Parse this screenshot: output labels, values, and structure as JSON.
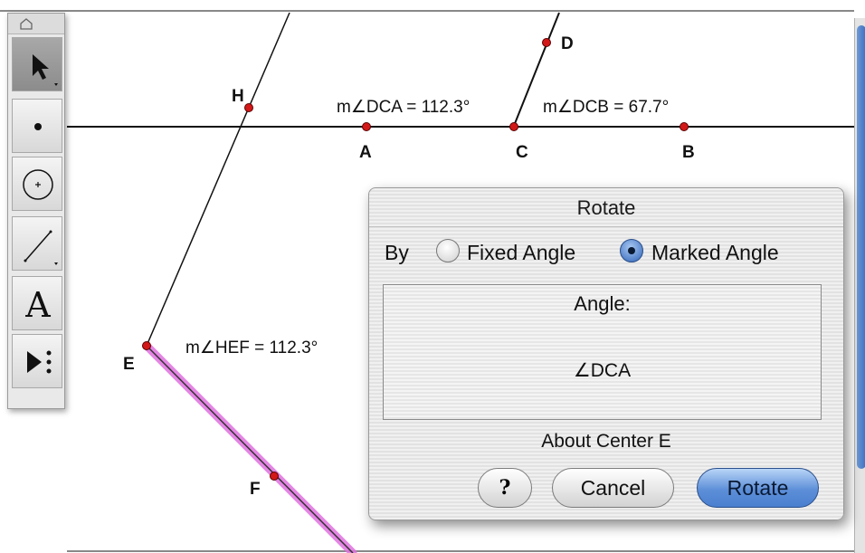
{
  "canvas": {
    "points": [
      {
        "name": "H",
        "label": "H"
      },
      {
        "name": "D",
        "label": "D"
      },
      {
        "name": "A",
        "label": "A"
      },
      {
        "name": "C",
        "label": "C"
      },
      {
        "name": "B",
        "label": "B"
      },
      {
        "name": "E",
        "label": "E"
      },
      {
        "name": "F",
        "label": "F"
      }
    ],
    "measurements": {
      "dca": "m∠DCA = 112.3°",
      "dcb": "m∠DCB = 67.7°",
      "hef": "m∠HEF = 112.3°"
    },
    "colors": {
      "point": "#d21818",
      "highlight": "#e070e0",
      "line": "#111111"
    }
  },
  "toolbox": {
    "tools": [
      {
        "name": "arrow-tool",
        "icon": "arrow-icon",
        "active": true
      },
      {
        "name": "point-tool",
        "icon": "point-icon",
        "active": false
      },
      {
        "name": "compass-tool",
        "icon": "compass-icon",
        "active": false
      },
      {
        "name": "straightedge-tool",
        "icon": "straightedge-icon",
        "active": false
      },
      {
        "name": "text-tool",
        "icon": "text-icon",
        "label": "A",
        "active": false
      },
      {
        "name": "custom-tool",
        "icon": "custom-tools-icon",
        "active": false
      }
    ]
  },
  "dialog": {
    "title": "Rotate",
    "by_label": "By",
    "options": [
      {
        "label": "Fixed Angle",
        "selected": false
      },
      {
        "label": "Marked Angle",
        "selected": true
      }
    ],
    "angle_caption": "Angle:",
    "angle_value": "∠DCA",
    "about_center": "About Center E",
    "buttons": {
      "help": "?",
      "cancel": "Cancel",
      "rotate": "Rotate"
    }
  }
}
